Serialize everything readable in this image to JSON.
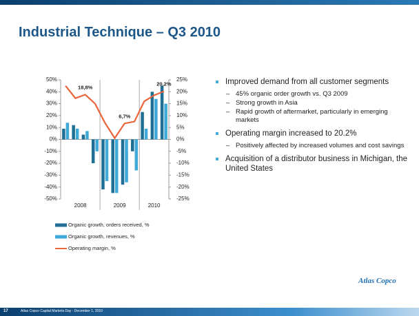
{
  "title": "Industrial Technique – Q3 2010",
  "chart_data": {
    "type": "bar_line",
    "categories": [
      null,
      null,
      null,
      null,
      null,
      null,
      null,
      null,
      null,
      null,
      null
    ],
    "groups": [
      "2008",
      "2009",
      "2010"
    ],
    "series": [
      {
        "name": "Organic growth, orders received, %",
        "color": "#1f6e94",
        "type": "bar",
        "values": [
          9,
          12,
          4,
          -20,
          -42,
          -45,
          -38,
          -10,
          23,
          40,
          45
        ]
      },
      {
        "name": "Organic growth, revenues, %",
        "color": "#3fa9d8",
        "type": "bar",
        "values": [
          14,
          9,
          7,
          -10,
          -35,
          -45,
          -36,
          -26,
          9,
          34,
          30
        ]
      },
      {
        "name": "Operating margin, %",
        "color": "#e8643a",
        "type": "line",
        "axis": "y2",
        "values": [
          22.5,
          17.3,
          18.8,
          15,
          7,
          0.5,
          6.7,
          7.5,
          16,
          18.5,
          20.2
        ],
        "value_labels": [
          null,
          null,
          "18,8%",
          null,
          null,
          null,
          "6,7%",
          null,
          null,
          null,
          "20,2%"
        ]
      }
    ],
    "ylim": [
      -50,
      50
    ],
    "yticks": [
      {
        "value": -50,
        "label": "-50%"
      },
      {
        "value": -40,
        "label": "-40%"
      },
      {
        "value": -30,
        "label": "-30%"
      },
      {
        "value": -20,
        "label": "-20%"
      },
      {
        "value": -10,
        "label": "-10%"
      },
      {
        "value": 0,
        "label": "0%"
      },
      {
        "value": 10,
        "label": "10%"
      },
      {
        "value": 20,
        "label": "20%"
      },
      {
        "value": 30,
        "label": "30%"
      },
      {
        "value": 40,
        "label": "40%"
      },
      {
        "value": 50,
        "label": "50%"
      }
    ],
    "y2lim": [
      -25,
      25
    ],
    "y2ticks": [
      {
        "value": -25,
        "label": "-25%"
      },
      {
        "value": -20,
        "label": "-20%"
      },
      {
        "value": -15,
        "label": "-15%"
      },
      {
        "value": -10,
        "label": "-10%"
      },
      {
        "value": -5,
        "label": "-5%"
      },
      {
        "value": 0,
        "label": "0%"
      },
      {
        "value": 5,
        "label": "5%"
      },
      {
        "value": 10,
        "label": "10%"
      },
      {
        "value": 15,
        "label": "15%"
      },
      {
        "value": 20,
        "label": "20%"
      },
      {
        "value": 25,
        "label": "25%"
      }
    ]
  },
  "bullets": [
    {
      "text": "Improved demand from all customer segments",
      "sub": [
        "45% organic order growth vs. Q3 2009",
        "Strong growth in Asia",
        "Rapid growth of aftermarket, particularly in emerging markets"
      ]
    },
    {
      "text": "Operating margin increased to 20.2%",
      "sub": [
        "Positively affected by increased volumes and cost savings"
      ]
    },
    {
      "text": "Acquisition of a distributor business in Michigan, the United States",
      "sub": []
    }
  ],
  "footer": {
    "page": "17",
    "text": "Atlas Copco Capital Markets Day - December 1, 2010"
  },
  "logo": "Atlas Copco"
}
